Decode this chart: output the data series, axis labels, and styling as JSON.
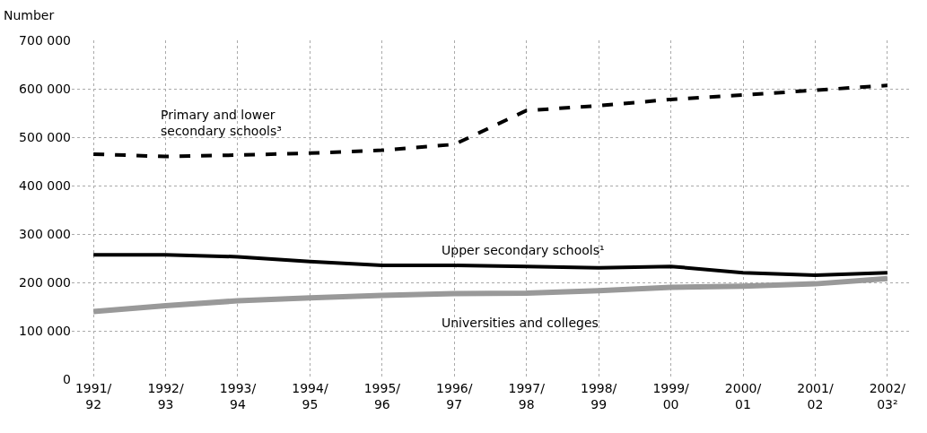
{
  "chart_data": {
    "type": "line",
    "ylabel": "Number",
    "categories": [
      "1991/92",
      "1992/93",
      "1993/94",
      "1994/95",
      "1995/96",
      "1996/97",
      "1997/98",
      "1998/99",
      "1999/00",
      "2000/01",
      "2001/02",
      "2002/03²"
    ],
    "series": [
      {
        "name": "Primary and lower secondary schools³",
        "color": "#000000",
        "line_style": "dashed",
        "values": [
          465000,
          460000,
          463000,
          467000,
          473000,
          485000,
          555000,
          565000,
          578000,
          587000,
          597000,
          607000
        ]
      },
      {
        "name": "Upper secondary schools¹",
        "color": "#000000",
        "line_style": "solid",
        "values": [
          257000,
          257000,
          253000,
          243000,
          235000,
          235000,
          233000,
          230000,
          233000,
          220000,
          215000,
          220000
        ]
      },
      {
        "name": "Universities and colleges",
        "color": "#999999",
        "line_style": "solid",
        "values": [
          140000,
          152000,
          162000,
          168000,
          173000,
          177000,
          178000,
          183000,
          190000,
          192000,
          197000,
          208000
        ]
      }
    ],
    "ylim": [
      0,
      700000
    ],
    "yticks": [
      0,
      {
        "value": 100000,
        "label": "100 000"
      },
      {
        "value": 200000,
        "label": "200 000"
      },
      {
        "value": 300000,
        "label": "300 000"
      },
      {
        "value": 400000,
        "label": "400 000"
      },
      {
        "value": 500000,
        "label": "500 000"
      },
      {
        "value": 600000,
        "label": "600 000"
      },
      {
        "value": 700000,
        "label": "700 000"
      }
    ],
    "grid": true,
    "legend": false,
    "marker": "none"
  }
}
